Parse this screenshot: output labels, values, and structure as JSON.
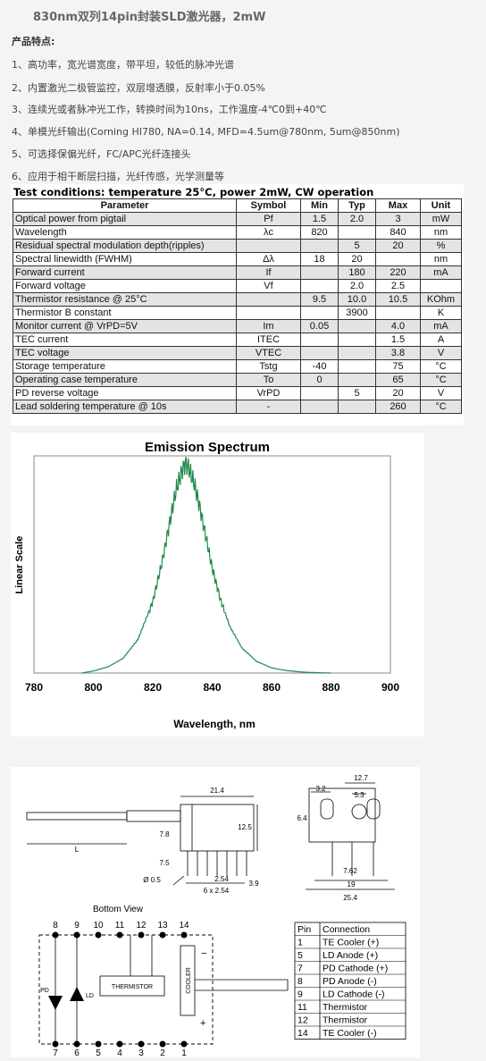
{
  "title": "830nm双列14pin封装SLD激光器，2mW",
  "features_heading": "产品特点:",
  "features": [
    "1、高功率，宽光谱宽度，带平坦，较低的脉冲光谱",
    "2、内置激光二极管监控，双层增透膜，反射率小于0.05%",
    "3、连续光或者脉冲光工作，转换时间为10ns，工作温度-4℃0到+40℃",
    "4、单模光纤输出(Corning HI780, NA=0.14, MFD=4.5um@780nm, 5um@850nm)",
    "5、可选择保偏光纤，FC/APC光纤连接头",
    "6、应用于相干断层扫描，光纤传感，光学测量等"
  ],
  "spec": {
    "conditions": "Test conditions: temperature 25°C, power 2mW, CW operation",
    "headers": [
      "Parameter",
      "Symbol",
      "Min",
      "Typ",
      "Max",
      "Unit"
    ],
    "rows": [
      [
        "Optical power from pigtail",
        "Pf",
        "1.5",
        "2.0",
        "3",
        "mW"
      ],
      [
        "Wavelength",
        "λc",
        "820",
        "",
        "840",
        "nm"
      ],
      [
        "Residual spectral modulation depth(ripples)",
        "",
        "",
        "5",
        "20",
        "%"
      ],
      [
        "Spectral linewidth (FWHM)",
        "Δλ",
        "18",
        "20",
        "",
        "nm"
      ],
      [
        "Forward current",
        "If",
        "",
        "180",
        "220",
        "mA"
      ],
      [
        "Forward voltage",
        "Vf",
        "",
        "2.0",
        "2.5",
        ""
      ],
      [
        "Thermistor resistance @ 25°C",
        "",
        "9.5",
        "10.0",
        "10.5",
        "KOhm"
      ],
      [
        "Thermistor B constant",
        "",
        "",
        "3900",
        "",
        "K"
      ],
      [
        "Monitor current @ VrPD=5V",
        "Im",
        "0.05",
        "",
        "4.0",
        "mA"
      ],
      [
        "TEC current",
        "ITEC",
        "",
        "",
        "1.5",
        "A"
      ],
      [
        "TEC voltage",
        "VTEC",
        "",
        "",
        "3.8",
        "V"
      ],
      [
        "Storage temperature",
        "Tstg",
        "-40",
        "",
        "75",
        "°C"
      ],
      [
        "Operating case temperature",
        "To",
        "0",
        "",
        "65",
        "°C"
      ],
      [
        "PD reverse voltage",
        "VrPD",
        "",
        "5",
        "20",
        "V"
      ],
      [
        "Lead soldering temperature @ 10s",
        "-",
        "",
        "",
        "260",
        "°C"
      ]
    ]
  },
  "chart_data": {
    "type": "line",
    "title": "Emission Spectrum",
    "xlabel": "Wavelength, nm",
    "ylabel": "Linear Scale",
    "xlim": [
      780,
      900
    ],
    "xticks": [
      "780",
      "800",
      "820",
      "840",
      "860",
      "880",
      "900"
    ],
    "grid": false,
    "color": "#1f8a4c",
    "series": [
      {
        "x": [
          796,
          800,
          805,
          810,
          815,
          820,
          823,
          826,
          828,
          830,
          831,
          832,
          834,
          836,
          838,
          840,
          843,
          846,
          850,
          855,
          860,
          865,
          870,
          875,
          880
        ],
        "y": [
          0.0,
          0.01,
          0.03,
          0.07,
          0.16,
          0.34,
          0.52,
          0.74,
          0.88,
          0.97,
          1.0,
          0.98,
          0.9,
          0.78,
          0.64,
          0.5,
          0.34,
          0.22,
          0.12,
          0.055,
          0.025,
          0.012,
          0.005,
          0.002,
          0.0
        ]
      }
    ]
  },
  "drawing": {
    "dims": {
      "d214": "21.4",
      "d125": "12.5",
      "d78": "7.8",
      "d75": "7.5",
      "d05": "Ø 0.5",
      "d254": "2.54",
      "d6x254": "6 x 2.54",
      "d39": "3.9",
      "dL": "L",
      "d127": "12.7",
      "d32": "3.2",
      "d53": "5.3",
      "d64": "6.4",
      "d762": "7.62",
      "d19": "19",
      "d254b": "25.4"
    },
    "bottom_view": "Bottom View",
    "top_pins": [
      "8",
      "9",
      "10",
      "11",
      "12",
      "13",
      "14"
    ],
    "bottom_pins": [
      "7",
      "6",
      "5",
      "4",
      "3",
      "2",
      "1"
    ],
    "pd": "PD",
    "ld": "LD",
    "thermistor": "THERMISTOR",
    "cooler": "COOLER",
    "minus": "−",
    "plus": "+",
    "pin_table": {
      "headers": [
        "Pin",
        "Connection"
      ],
      "rows": [
        [
          "1",
          "TE Cooler (+)"
        ],
        [
          "5",
          "LD Anode (+)"
        ],
        [
          "7",
          "PD Cathode (+)"
        ],
        [
          "8",
          "PD Anode (-)"
        ],
        [
          "9",
          "LD Cathode (-)"
        ],
        [
          "11",
          "Thermistor"
        ],
        [
          "12",
          "Thermistor"
        ],
        [
          "14",
          "TE Cooler (-)"
        ]
      ]
    }
  }
}
